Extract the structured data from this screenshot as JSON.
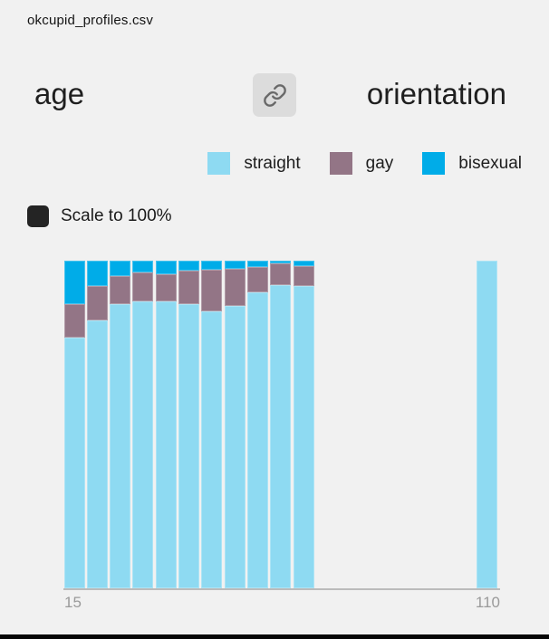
{
  "file": {
    "name": "okcupid_profiles.csv"
  },
  "fields": {
    "x": "age",
    "y": "orientation"
  },
  "header": {
    "link_button_icon": "link-icon"
  },
  "legend": {
    "items": [
      {
        "label": "straight",
        "color": "#8EDAF2"
      },
      {
        "label": "gay",
        "color": "#937586"
      },
      {
        "label": "bisexual",
        "color": "#00ACE8"
      }
    ]
  },
  "controls": {
    "scale_label": "Scale to 100%",
    "checked": true
  },
  "colors": {
    "background": "#F1F1F1",
    "button_bg": "#DCDCDC",
    "checkbox": "#242424",
    "axis_line": "#BBBBBB",
    "axis_text": "#9A9A9A",
    "window_edge": "#060606"
  },
  "chart_data": {
    "type": "bar",
    "stacked": true,
    "normalized_to_100pct": true,
    "x_field": "age",
    "x_bin_starts": [
      15,
      20,
      25,
      30,
      35,
      40,
      45,
      50,
      55,
      60,
      65,
      105
    ],
    "x_bin_width": 5,
    "series": [
      {
        "name": "straight",
        "color": "#8EDAF2",
        "values": [
          76.6,
          81.9,
          86.8,
          87.7,
          87.5,
          86.8,
          84.5,
          86.3,
          90.4,
          92.5,
          92.2,
          100
        ]
      },
      {
        "name": "gay",
        "color": "#937586",
        "values": [
          10.2,
          10.4,
          8.5,
          8.6,
          8.3,
          10.1,
          12.8,
          11.1,
          7.8,
          6.6,
          6.2,
          0
        ]
      },
      {
        "name": "bisexual",
        "color": "#00ACE8",
        "values": [
          13.2,
          7.7,
          4.7,
          3.7,
          4.2,
          3.1,
          2.7,
          2.6,
          1.8,
          0.9,
          1.6,
          0
        ]
      }
    ],
    "xlim": [
      15,
      110
    ],
    "ylim": [
      0,
      100
    ],
    "x_ticks": [
      "15",
      "110"
    ],
    "grid": false,
    "legend_position": "top"
  }
}
